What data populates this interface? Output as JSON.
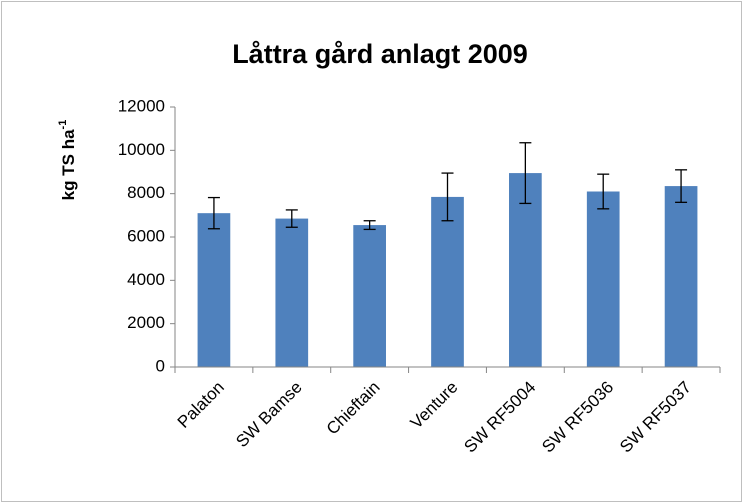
{
  "chart_data": {
    "type": "bar",
    "title": "Låttra gård anlagt 2009",
    "y_label": "kg TS ha",
    "y_label_superscript": "-1",
    "categories": [
      "Palaton",
      "SW Bamse",
      "Chieftain",
      "Venture",
      "SW RF5004",
      "SW RF5036",
      "SW RF5037"
    ],
    "values": [
      7100,
      6850,
      6550,
      7850,
      8950,
      8100,
      8350
    ],
    "errors": [
      720,
      400,
      200,
      1100,
      1400,
      800,
      750
    ],
    "color": "#4f81bd",
    "ylim": [
      0,
      12000
    ],
    "yticks": [
      0,
      2000,
      4000,
      6000,
      8000,
      10000,
      12000
    ],
    "grid": false
  }
}
